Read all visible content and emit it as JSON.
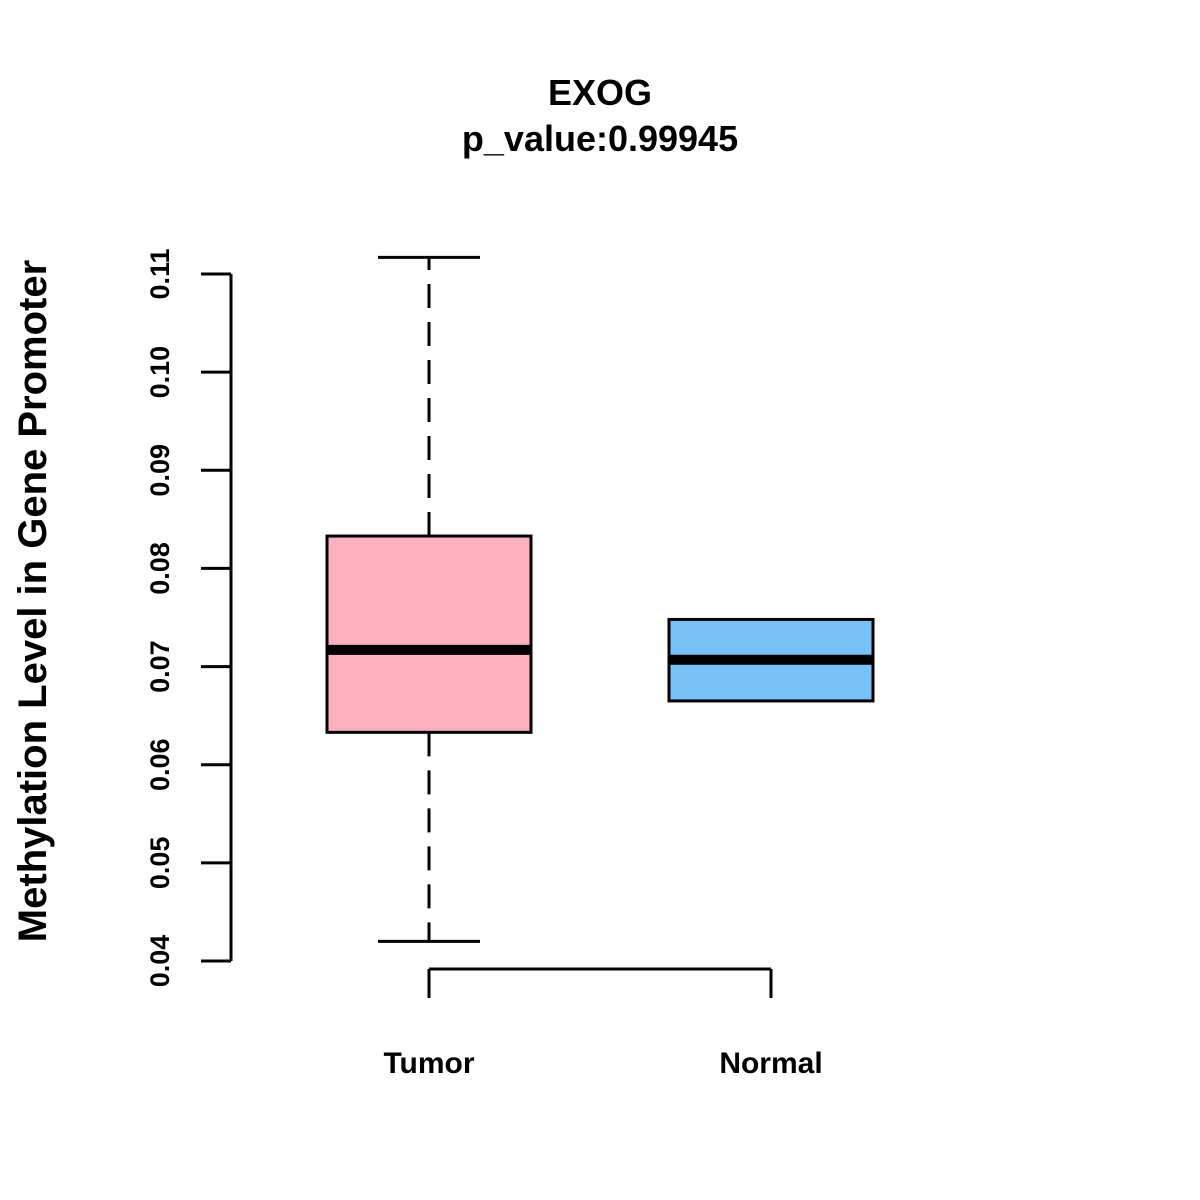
{
  "chart_data": {
    "type": "boxplot",
    "title": "EXOG",
    "subtitle": "p_value:0.99945",
    "xlabel": "",
    "ylabel": "Methylation Level in Gene Promoter",
    "ylim": [
      0.04,
      0.11
    ],
    "yticks": [
      0.04,
      0.05,
      0.06,
      0.07,
      0.08,
      0.09,
      0.1,
      0.11
    ],
    "ytick_labels": [
      "0.04",
      "0.05",
      "0.06",
      "0.07",
      "0.08",
      "0.09",
      "0.10",
      "0.11"
    ],
    "categories": [
      "Tumor",
      "Normal"
    ],
    "grid": false,
    "legend": "none",
    "boxes": [
      {
        "label": "Tumor",
        "whisker_low": 0.042,
        "q1": 0.0633,
        "median": 0.0717,
        "q3": 0.0833,
        "whisker_high": 0.1117,
        "color": "#FFB0C1"
      },
      {
        "label": "Normal",
        "whisker_low": 0.0665,
        "q1": 0.0665,
        "median": 0.0707,
        "q3": 0.0748,
        "whisker_high": 0.0748,
        "color": "#77C1F9"
      }
    ]
  }
}
